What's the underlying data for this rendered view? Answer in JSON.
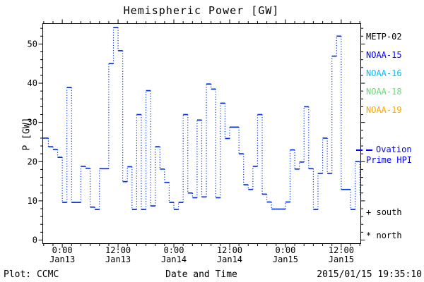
{
  "title": "Hemispheric Power [GW]",
  "colors": {
    "background": "#ffffff",
    "frame": "#000000",
    "line": "#0033dd",
    "model_text": "#0000ff"
  },
  "legend": {
    "satellites": [
      {
        "label": "METP-02",
        "color": "#000000"
      },
      {
        "label": "NOAA-15",
        "color": "#0000ff"
      },
      {
        "label": "NOAA-16",
        "color": "#00bfff"
      },
      {
        "label": "NOAA-18",
        "color": "#66dd77"
      },
      {
        "label": "NOAA-19",
        "color": "#ffa500"
      }
    ],
    "model": {
      "line1": "Ovation",
      "line2": "Prime HPI",
      "color": "#0000ff"
    },
    "hemisphere_markers": [
      {
        "symbol": "+",
        "label": "south"
      },
      {
        "symbol": "*",
        "label": "north"
      }
    ]
  },
  "footer": {
    "left": "Plot: CCMC",
    "xlabel": "Date and Time",
    "timestamp": "2015/01/15 19:35:10"
  },
  "chart_data": {
    "type": "line",
    "style": "dotted-step-histogram",
    "title": "Hemispheric Power [GW]",
    "xlabel": "Date and Time",
    "ylabel": "P [GW]",
    "ylim": [
      0,
      55
    ],
    "y_ticks": [
      0,
      10,
      20,
      30,
      40,
      50
    ],
    "y_minor_step": 2,
    "x_hours_range": [
      -4.2,
      64.2
    ],
    "x_epoch": "hours since 2015-01-13 00:00",
    "x_minor_step_hours": 2,
    "x_ticks": [
      {
        "hour": 0,
        "time": "0:00",
        "date": "Jan13"
      },
      {
        "hour": 12,
        "time": "12:00",
        "date": "Jan13"
      },
      {
        "hour": 24,
        "time": "0:00",
        "date": "Jan14"
      },
      {
        "hour": 36,
        "time": "12:00",
        "date": "Jan14"
      },
      {
        "hour": 48,
        "time": "0:00",
        "date": "Jan15"
      },
      {
        "hour": 60,
        "time": "12:00",
        "date": "Jan15"
      }
    ],
    "series": [
      {
        "name": "Ovation Prime HPI",
        "color": "#0033dd",
        "units": "GW",
        "points": [
          [
            -4.2,
            26.0
          ],
          [
            -3,
            23.8
          ],
          [
            -2,
            23.1
          ],
          [
            -1,
            21.1
          ],
          [
            0,
            9.6
          ],
          [
            1,
            38.9
          ],
          [
            2,
            9.6
          ],
          [
            3,
            9.6
          ],
          [
            4,
            18.8
          ],
          [
            5,
            18.3
          ],
          [
            6,
            8.4
          ],
          [
            7,
            7.8
          ],
          [
            8,
            18.2
          ],
          [
            9,
            18.2
          ],
          [
            10,
            45.0
          ],
          [
            11,
            54.2
          ],
          [
            12,
            48.3
          ],
          [
            13,
            14.9
          ],
          [
            14,
            18.7
          ],
          [
            15,
            7.8
          ],
          [
            16,
            32.0
          ],
          [
            17,
            7.8
          ],
          [
            18,
            38.1
          ],
          [
            19,
            8.7
          ],
          [
            20,
            23.8
          ],
          [
            21,
            18.1
          ],
          [
            22,
            14.7
          ],
          [
            23,
            9.6
          ],
          [
            24,
            7.8
          ],
          [
            25,
            9.6
          ],
          [
            26,
            32.0
          ],
          [
            27,
            12.0
          ],
          [
            28,
            10.8
          ],
          [
            29,
            30.6
          ],
          [
            30,
            11.0
          ],
          [
            31,
            39.8
          ],
          [
            32,
            38.5
          ],
          [
            33,
            10.8
          ],
          [
            34,
            34.9
          ],
          [
            35,
            25.9
          ],
          [
            36,
            28.8
          ],
          [
            37,
            28.8
          ],
          [
            38,
            22.0
          ],
          [
            39,
            14.1
          ],
          [
            40,
            12.9
          ],
          [
            41,
            18.8
          ],
          [
            42,
            32.0
          ],
          [
            43,
            11.7
          ],
          [
            44,
            9.7
          ],
          [
            45,
            7.9
          ],
          [
            46,
            7.9
          ],
          [
            47,
            7.9
          ],
          [
            48,
            9.7
          ],
          [
            49,
            23.0
          ],
          [
            50,
            18.1
          ],
          [
            51,
            19.9
          ],
          [
            52,
            34.0
          ],
          [
            53,
            18.2
          ],
          [
            54,
            7.8
          ],
          [
            55,
            17.0
          ],
          [
            56,
            26.0
          ],
          [
            57,
            17.0
          ],
          [
            58,
            46.9
          ],
          [
            59,
            52.0
          ],
          [
            60,
            12.9
          ],
          [
            61,
            12.9
          ],
          [
            62,
            7.8
          ],
          [
            63,
            20.0
          ],
          [
            64,
            11.6
          ],
          [
            64.2,
            11.6
          ]
        ]
      }
    ]
  }
}
